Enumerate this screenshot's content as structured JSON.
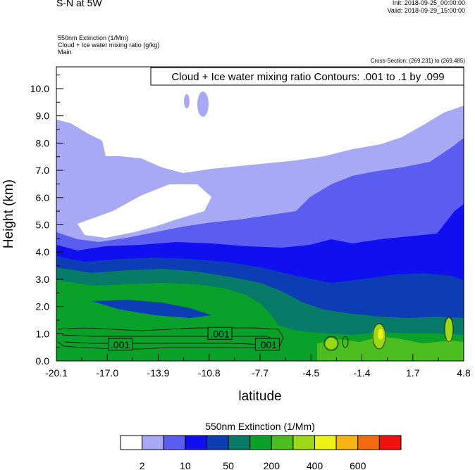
{
  "header": {
    "title": "S-N at 5W",
    "init": "Init: 2018-09-25_00:00:00",
    "valid": "Valid: 2018-09-29_15:00:00",
    "field1": "550nm Extinction   (1/Mm)",
    "field2": "Cloud + Ice water mixing ratio   (g/kg)",
    "field3": "Main",
    "cross_section": "Cross-Section: (269,231) to (269,485)"
  },
  "chart_data": {
    "type": "heatmap",
    "xlabel": "latitude",
    "ylabel": "Height (km)",
    "x_ticks": [
      "-20.1",
      "-17.0",
      "-13.9",
      "-10.8",
      "-7.7",
      "-4.5",
      "-1.4",
      "1.7",
      "4.8"
    ],
    "y_ticks": [
      "0.0",
      "1.0",
      "2.0",
      "3.0",
      "4.0",
      "5.0",
      "6.0",
      "7.0",
      "8.0",
      "9.0",
      "10.0"
    ],
    "xlim": [
      -20.1,
      4.8
    ],
    "ylim": [
      0.0,
      10.8
    ],
    "contour_info": "Cloud + Ice water mixing ratio Contours: .001 to .1 by .099",
    "contour_labels": [
      {
        "text": ".001",
        "x": -16.2,
        "y": 0.6
      },
      {
        "text": ".001",
        "x": -10.1,
        "y": 1.0
      },
      {
        "text": ".001",
        "x": -7.2,
        "y": 0.6
      }
    ],
    "colorbar": {
      "title": "550nm Extinction  (1/Mm)",
      "colors": [
        "#ffffff",
        "#a7a9f4",
        "#5b5cf0",
        "#0f0ff0",
        "#0c3db4",
        "#077a68",
        "#0aa12a",
        "#4cbd1e",
        "#9cd815",
        "#eef214",
        "#f5b412",
        "#f36a10",
        "#f0100e"
      ],
      "tick_labels": [
        "2",
        "10",
        "50",
        "200",
        "400",
        "600"
      ]
    }
  }
}
